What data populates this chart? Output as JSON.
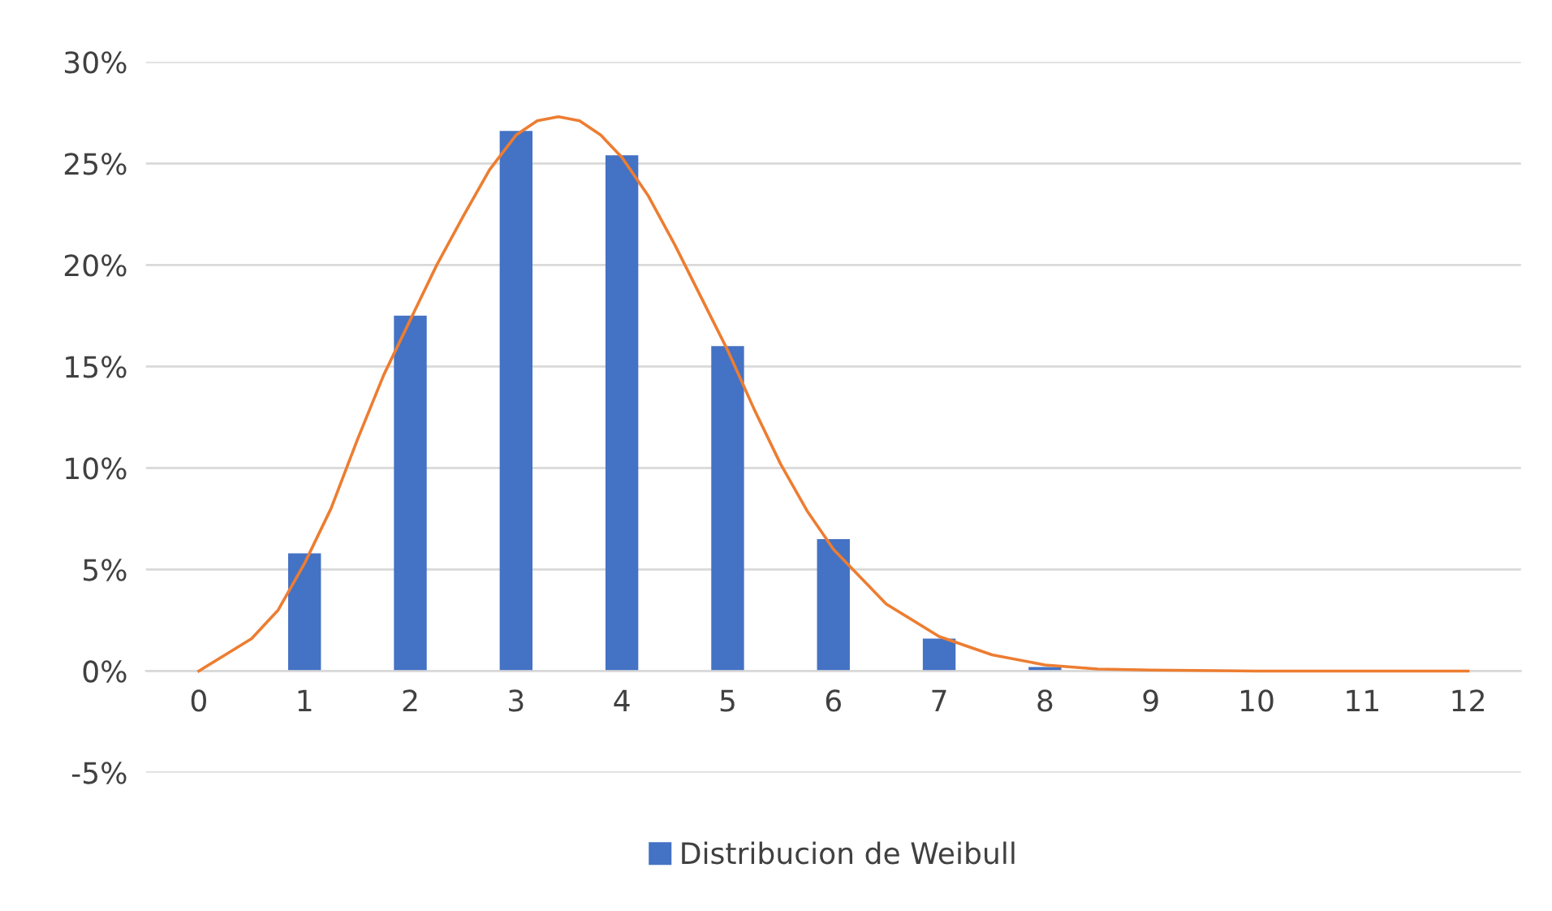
{
  "chart_data": {
    "type": "bar",
    "x": [
      0,
      1,
      2,
      3,
      4,
      5,
      6,
      7,
      8,
      9,
      10,
      11,
      12
    ],
    "xlim": [
      -0.5,
      12.5
    ],
    "xticks": [
      0,
      1,
      2,
      3,
      4,
      5,
      6,
      7,
      8,
      9,
      10,
      11,
      12
    ],
    "series": [
      {
        "name": "Distribucion de Weibull",
        "color": "#4472c4",
        "values": [
          0,
          5.8,
          17.5,
          26.6,
          25.4,
          16.0,
          6.5,
          1.6,
          0.2,
          0,
          0,
          0,
          0
        ]
      },
      {
        "type": "line",
        "color": "#ed7d31",
        "x": [
          0,
          0.25,
          0.5,
          0.75,
          1,
          1.25,
          1.5,
          1.75,
          2,
          2.25,
          2.5,
          2.75,
          3,
          3.2,
          3.4,
          3.6,
          3.8,
          4,
          4.25,
          4.5,
          4.75,
          5,
          5.25,
          5.5,
          5.75,
          6,
          6.5,
          7,
          7.5,
          8,
          8.5,
          9,
          10,
          11,
          12
        ],
        "values": [
          0,
          0.8,
          1.6,
          3.0,
          5.3,
          8.0,
          11.4,
          14.6,
          17.3,
          20.0,
          22.4,
          24.7,
          26.4,
          27.1,
          27.3,
          27.1,
          26.4,
          25.3,
          23.4,
          21.0,
          18.4,
          15.8,
          12.9,
          10.2,
          7.9,
          6.0,
          3.3,
          1.7,
          0.8,
          0.3,
          0.1,
          0.05,
          0,
          0,
          0
        ]
      }
    ],
    "ylim": [
      -5,
      30
    ],
    "yticks": [
      {
        "value": -5,
        "label": "-5%"
      },
      {
        "value": 0,
        "label": "0%"
      },
      {
        "value": 5,
        "label": "5%"
      },
      {
        "value": 10,
        "label": "10%"
      },
      {
        "value": 15,
        "label": "15%"
      },
      {
        "value": 20,
        "label": "20%"
      },
      {
        "value": 25,
        "label": "25%"
      },
      {
        "value": 30,
        "label": "30%"
      }
    ],
    "grid": "y",
    "legend": "bottom",
    "marker": "none",
    "line_style": "solid"
  }
}
